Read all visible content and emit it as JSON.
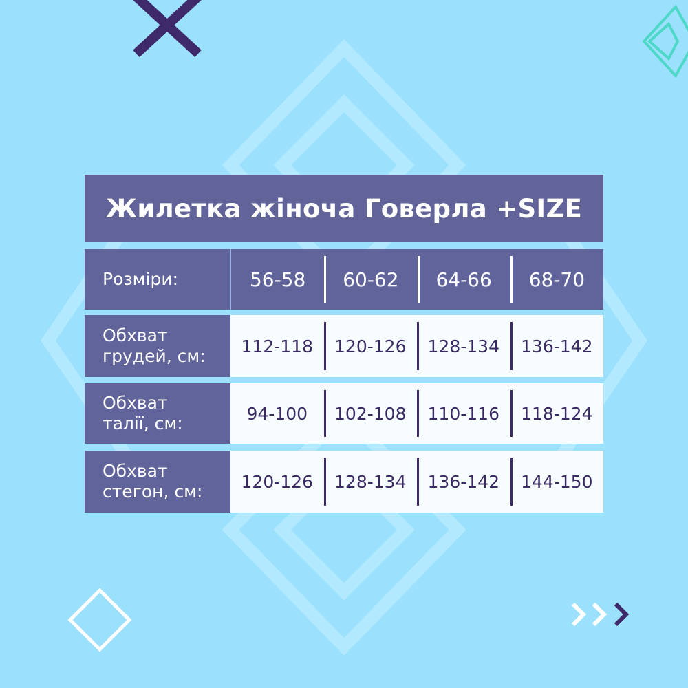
{
  "title": "Жилетка жіноча Говерла +SIZE",
  "header": {
    "label": "Розміри:",
    "sizes": [
      "56-58",
      "60-62",
      "64-66",
      "68-70"
    ]
  },
  "rows": [
    {
      "label_line1": "Обхват",
      "label_line2": "грудей, см:",
      "values": [
        "112-118",
        "120-126",
        "128-134",
        "136-142"
      ]
    },
    {
      "label_line1": "Обхват",
      "label_line2": "талії, см:",
      "values": [
        "94-100",
        "102-108",
        "110-116",
        "118-124"
      ]
    },
    {
      "label_line1": "Обхват",
      "label_line2": "стегон, см:",
      "values": [
        "120-126",
        "128-134",
        "136-142",
        "144-150"
      ]
    }
  ],
  "colors": {
    "background": "#9be0fd",
    "panel": "#5f5f96",
    "text_dark": "#3a2a63",
    "accent_green": "#4fd8c8"
  }
}
